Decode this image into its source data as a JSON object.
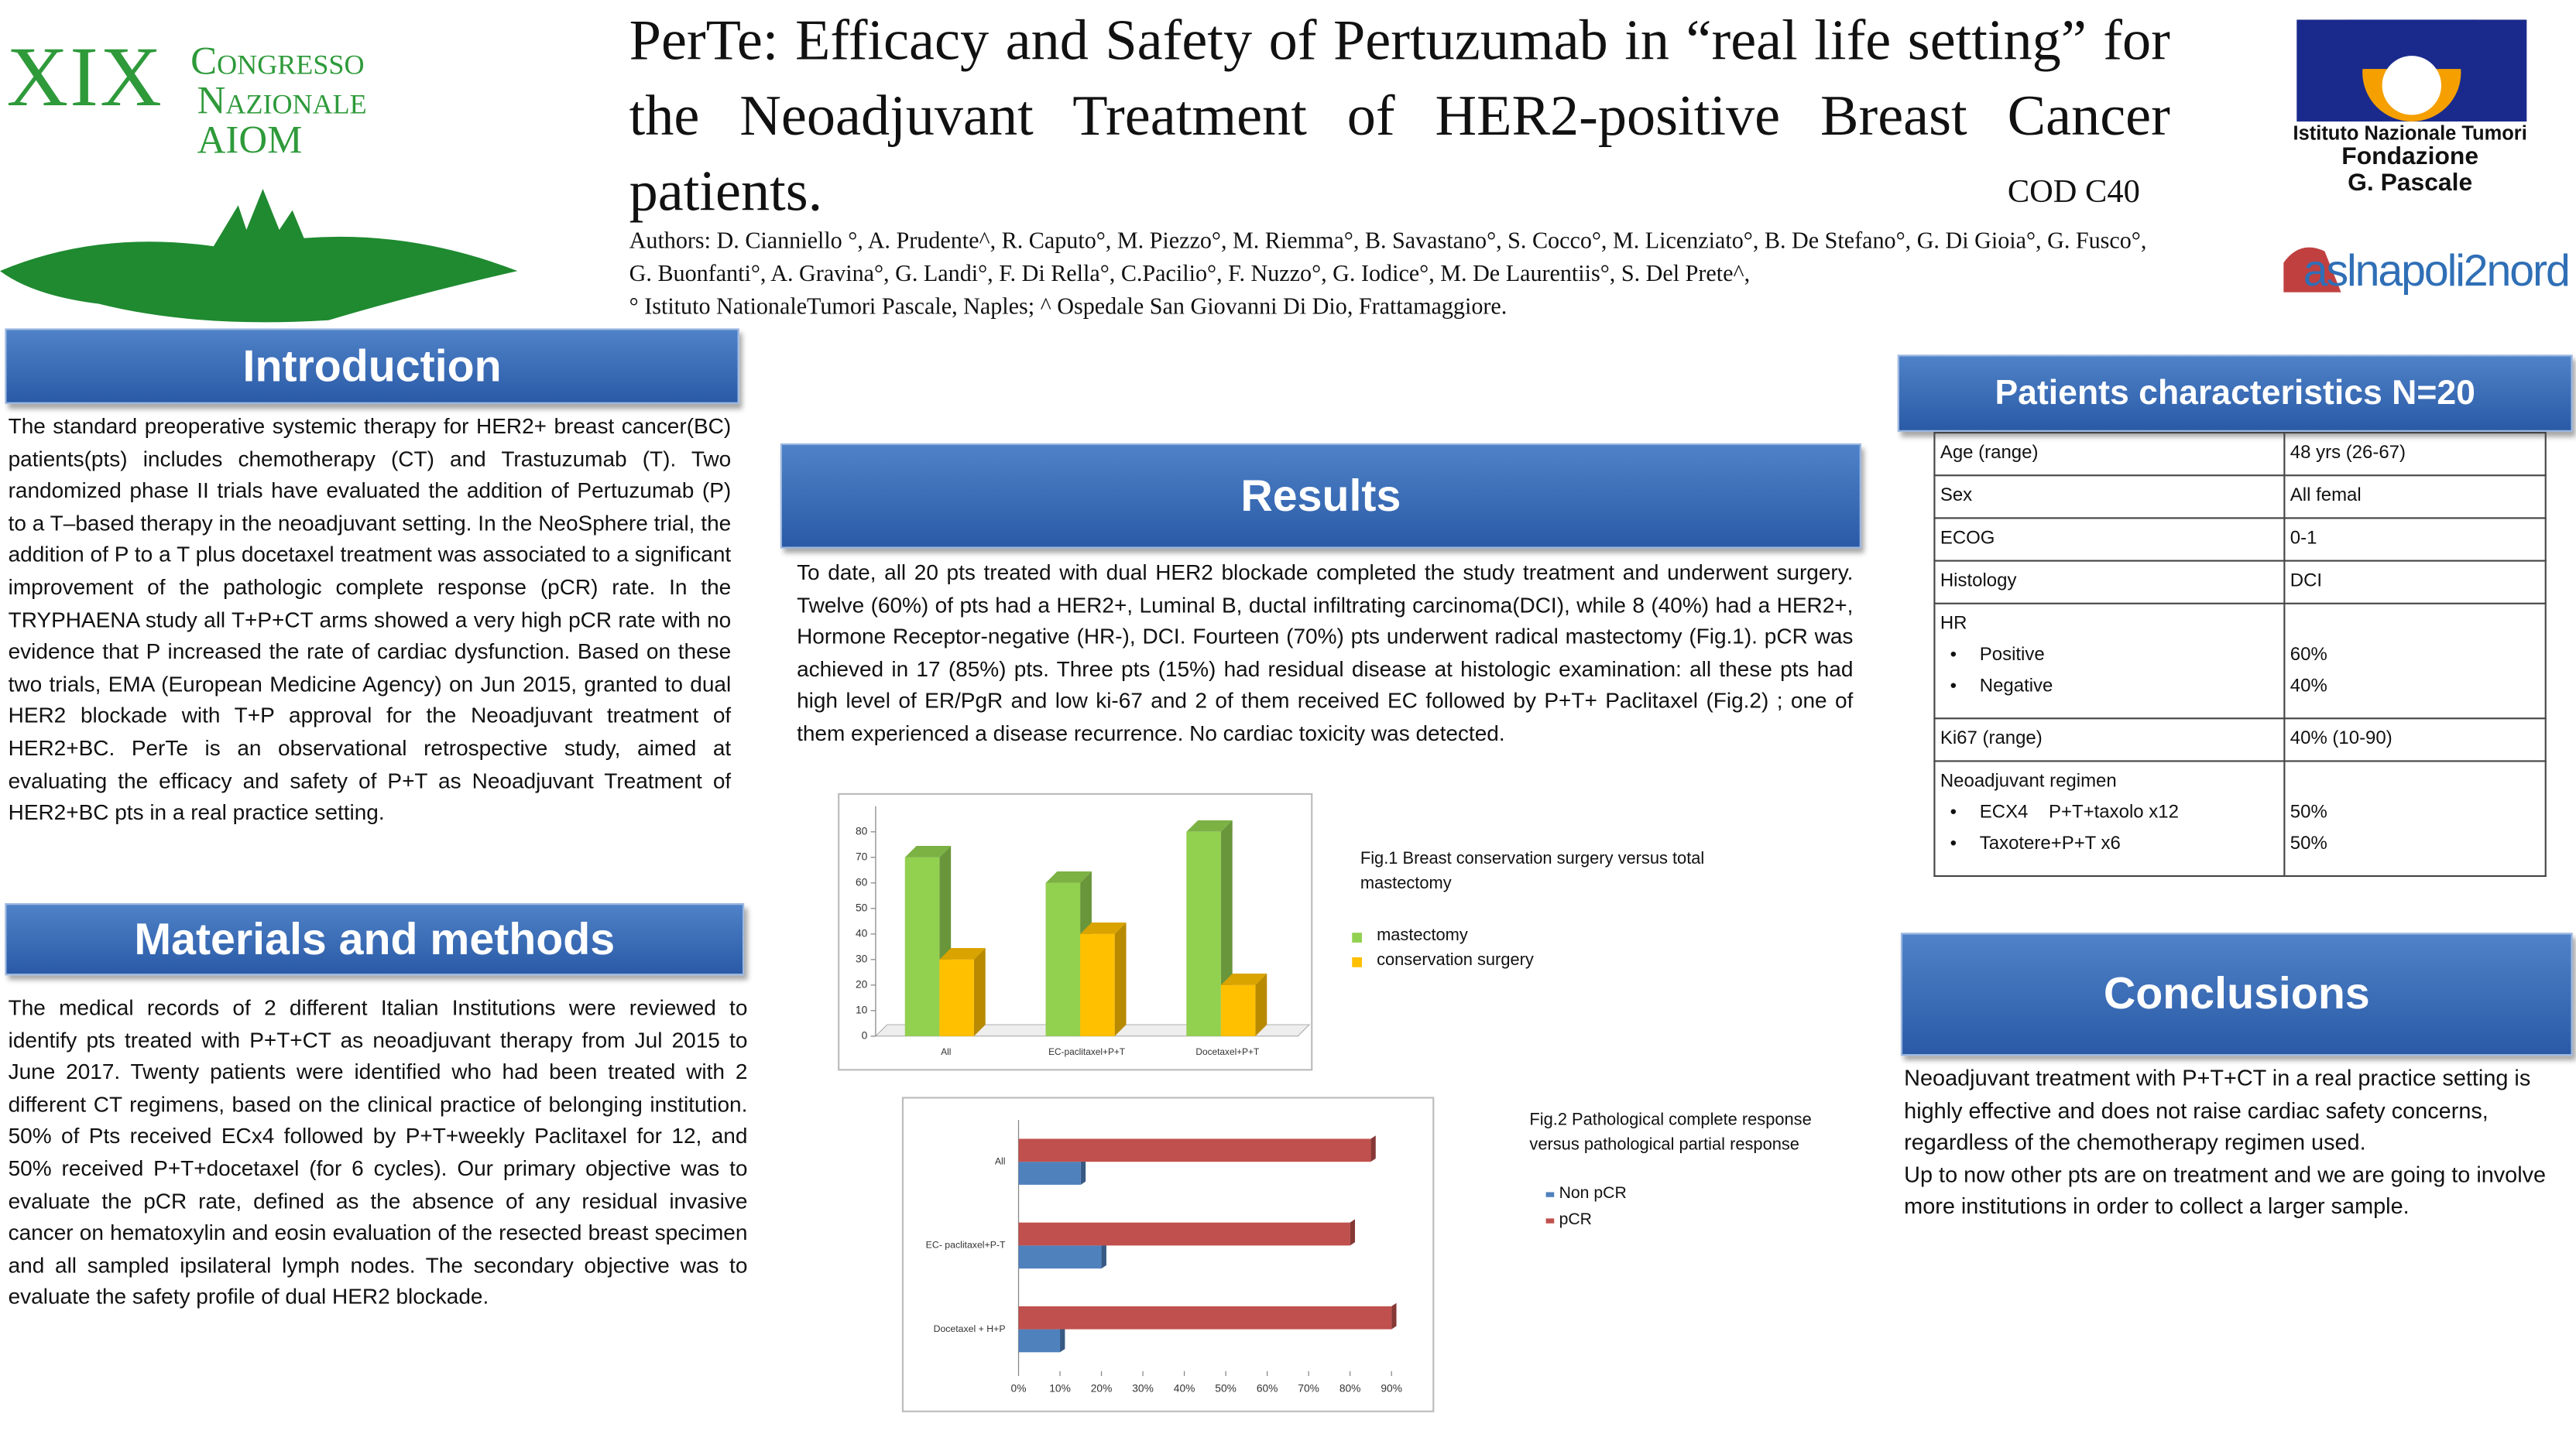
{
  "logo_left": {
    "roman": "XIX",
    "line1": "Congresso",
    "line2": "Nazionale",
    "line3": "AIOM"
  },
  "logo_right": {
    "line1": "Istituto Nazionale Tumori",
    "line2": "Fondazione",
    "line3": "G. Pascale",
    "asl": "aslnapoli2nord"
  },
  "header": {
    "title": "PerTe: Efficacy and Safety of Pertuzumab in “real life setting” for the Neoadjuvant Treatment of HER2-positive Breast Cancer patients.",
    "code": "COD C40",
    "authors": "Authors: D. Cianniello °, A. Prudente^, R. Caputo°, M. Piezzo°, M. Riemma°, B. Savastano°, S. Cocco°, M. Licenziato°, B. De Stefano°, G. Di Gioia°, G. Fusco°, G. Buonfanti°, A. Gravina°, G. Landi°, F. Di Rella°, C.Pacilio°, F. Nuzzo°,  G. Iodice°, M. De Laurentiis°, S. Del Prete^,",
    "affiliations": "° Istituto NationaleTumori Pascale, Naples;   ^ Ospedale San Giovanni Di Dio, Frattamaggiore."
  },
  "introduction": {
    "heading": "Introduction",
    "text": "The standard preoperative systemic therapy for HER2+ breast cancer(BC) patients(pts) includes chemotherapy (CT) and Trastuzumab (T). Two randomized phase II trials have evaluated the addition of Pertuzumab (P) to a T–based therapy in the neoadjuvant setting. In the NeoSphere trial, the addition of  P to a T plus docetaxel treatment was associated to a significant improvement of the pathologic complete response (pCR) rate. In the TRYPHAENA study all T+P+CT arms showed a very high pCR rate with no evidence that P increased the rate of cardiac dysfunction. Based on these two trials, EMA (European Medicine Agency) on Jun 2015, granted to dual HER2 blockade with T+P approval for the Neoadjuvant treatment of HER2+BC. PerTe is an observational retrospective study, aimed at evaluating the efficacy and safety of P+T  as Neoadjuvant Treatment of HER2+BC pts in a real practice setting."
  },
  "methods": {
    "heading": "Materials and methods",
    "text": "The medical records of 2 different Italian Institutions were reviewed to identify pts treated with P+T+CT as neoadjuvant therapy from Jul 2015 to June 2017. Twenty patients were identified who had been treated with 2 different CT regimens, based on the clinical practice of belonging institution. 50% of Pts received ECx4 followed by P+T+weekly Paclitaxel for 12, and 50% received P+T+docetaxel (for 6 cycles). Our primary objective was to evaluate the pCR rate, defined as the absence of any residual invasive cancer on hematoxylin and eosin evaluation of the resected breast specimen and all sampled ipsilateral lymph nodes. The secondary objective was to evaluate the safety profile of dual HER2 blockade."
  },
  "results": {
    "heading": "Results",
    "text": "To date, all 20 pts treated with dual HER2 blockade completed the study treatment and underwent surgery. Twelve (60%) of pts had a HER2+, Luminal B, ductal infiltrating carcinoma(DCI), while 8 (40%) had a HER2+, Hormone Receptor-negative (HR-), DCI. Fourteen (70%) pts underwent radical mastectomy (Fig.1). pCR was achieved in 17 (85%) pts. Three pts (15%) had residual disease at histologic examination: all these pts had high level of ER/PgR and low ki-67 and 2 of them received EC followed by P+T+ Paclitaxel (Fig.2) ; one of them experienced a disease recurrence. No cardiac toxicity was detected."
  },
  "patients": {
    "heading": "Patients characteristics  N=20",
    "rows": [
      {
        "label": "Age (range)",
        "value": "48 yrs (26-67)"
      },
      {
        "label": "Sex",
        "value": "All femal"
      },
      {
        "label": "ECOG",
        "value": "0-1"
      },
      {
        "label": "Histology",
        "value": "DCI"
      },
      {
        "label": "HR",
        "items": [
          {
            "label": "Positive",
            "value": "60%"
          },
          {
            "label": "Negative",
            "value": "40%"
          }
        ]
      },
      {
        "label": "Ki67 (range)",
        "value": "40% (10-90)"
      },
      {
        "label": "Neoadjuvant regimen",
        "items": [
          {
            "label": "ECX4    P+T+taxolo x12",
            "value": "50%"
          },
          {
            "label": "Taxotere+P+T x6",
            "value": "50%"
          }
        ]
      }
    ]
  },
  "conclusions": {
    "heading": "Conclusions",
    "paragraphs": [
      "Neoadjuvant treatment with P+T+CT in a real practice setting is highly effective and does not raise cardiac safety concerns, regardless of the chemotherapy regimen used.",
      "Up to now other pts are on treatment and we are going to involve more institutions in order to collect a larger sample."
    ]
  },
  "chart_data": [
    {
      "type": "bar3d",
      "title": "Fig.1  Breast conservation surgery versus total mastectomy",
      "categories": [
        "All",
        "EC-paclitaxel+P+T",
        "Docetaxel+P+T"
      ],
      "series": [
        {
          "name": "mastectomy",
          "color": "#92d050",
          "values": [
            70,
            60,
            80
          ]
        },
        {
          "name": "conservation surgery",
          "color": "#ffc000",
          "values": [
            30,
            40,
            20
          ]
        }
      ],
      "ylim": [
        0,
        90
      ],
      "yticks": [
        0,
        10,
        20,
        30,
        40,
        50,
        60,
        70,
        80
      ]
    },
    {
      "type": "hbar",
      "title": "Fig.2  Pathological complete response versus pathological partial response",
      "categories": [
        "All",
        "EC- paclitaxel+P-T",
        "Docetaxel + H+P"
      ],
      "series": [
        {
          "name": "Non pCR",
          "color": "#4f81bd",
          "values": [
            15,
            20,
            10
          ]
        },
        {
          "name": "pCR",
          "color": "#c0504d",
          "values": [
            85,
            80,
            90
          ]
        }
      ],
      "xlim": [
        0,
        90
      ],
      "xticks": [
        {
          "value": 0,
          "label": "0%"
        },
        {
          "value": 10,
          "label": "10%"
        },
        {
          "value": 20,
          "label": "20%"
        },
        {
          "value": 30,
          "label": "30%"
        },
        {
          "value": 40,
          "label": "40%"
        },
        {
          "value": 50,
          "label": "50%"
        },
        {
          "value": 60,
          "label": "60%"
        },
        {
          "value": 70,
          "label": "70%"
        },
        {
          "value": 80,
          "label": "80%"
        },
        {
          "value": 90,
          "label": "90%"
        }
      ]
    }
  ]
}
